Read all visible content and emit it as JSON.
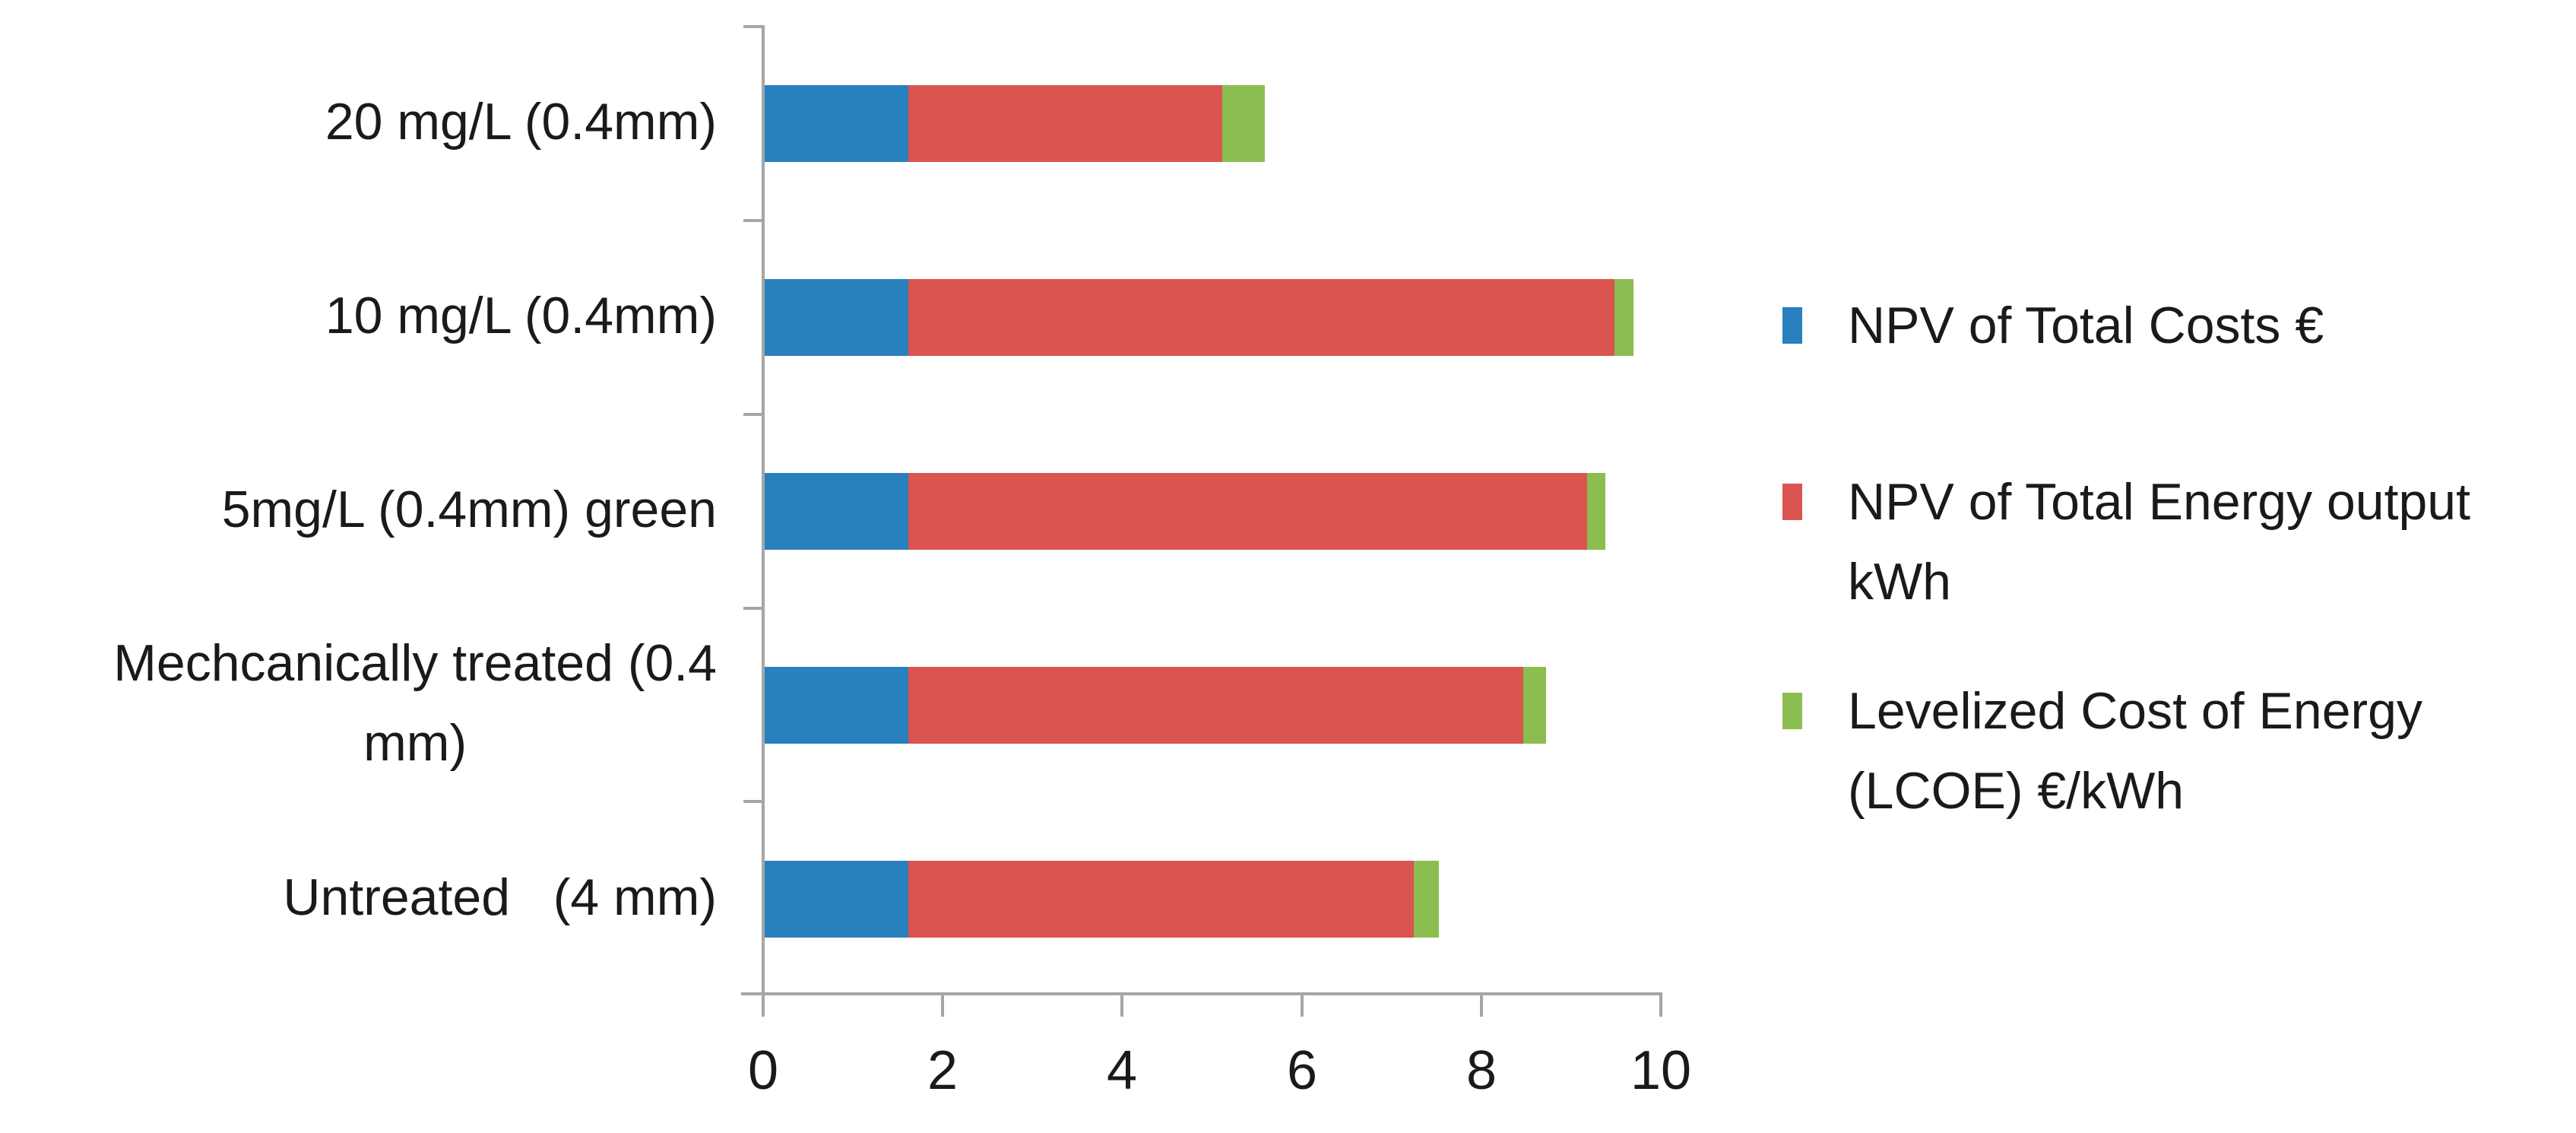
{
  "chart_data": {
    "type": "bar",
    "orientation": "horizontal",
    "stacked": true,
    "title": "",
    "xlabel": "",
    "ylabel": "",
    "categories": [
      "20 mg/L (0.4mm)",
      "10 mg/L (0.4mm)",
      "5mg/L (0.4mm) green",
      "Mechcanically treated (0.4 mm)",
      "Untreated   (4 mm)"
    ],
    "category_display": [
      "20 mg/L (0.4mm)",
      "10 mg/L (0.4mm)",
      "5mg/L (0.4mm) green",
      "Mechcanically treated (0.4\nmm)",
      "Untreated   (4 mm)"
    ],
    "series": [
      {
        "name": "NPV of Total Costs €",
        "color": "#2980BE",
        "values": [
          1.6,
          1.6,
          1.6,
          1.6,
          1.6
        ]
      },
      {
        "name": "NPV of Total Energy output kWh",
        "color": "#DA5450",
        "values": [
          3.5,
          7.87,
          7.56,
          6.85,
          5.63
        ]
      },
      {
        "name": "Levelized Cost of Energy (LCOE) €/kWh",
        "color": "#8CBD50",
        "values": [
          0.47,
          0.21,
          0.2,
          0.25,
          0.28
        ]
      }
    ],
    "xlim": [
      0,
      10
    ],
    "x_ticks": [
      0,
      2,
      4,
      6,
      8,
      10
    ],
    "x_tick_labels": [
      "0",
      "2",
      "4",
      "6",
      "8",
      "10"
    ],
    "grid": false,
    "legend_position": "right"
  },
  "legend": {
    "items": [
      {
        "label": "NPV of Total Costs €",
        "color": "#2980BE"
      },
      {
        "label": "NPV of Total Energy output\nkWh",
        "color": "#DA5450"
      },
      {
        "label": "Levelized Cost of Energy\n(LCOE) €/kWh",
        "color": "#8CBD50"
      }
    ]
  },
  "colors": {
    "series_blue": "#2980BE",
    "series_red": "#DA5450",
    "series_green": "#8CBD50",
    "axis": "#A6A6A6",
    "text": "#1A1A1A",
    "background": "#FFFFFF"
  }
}
